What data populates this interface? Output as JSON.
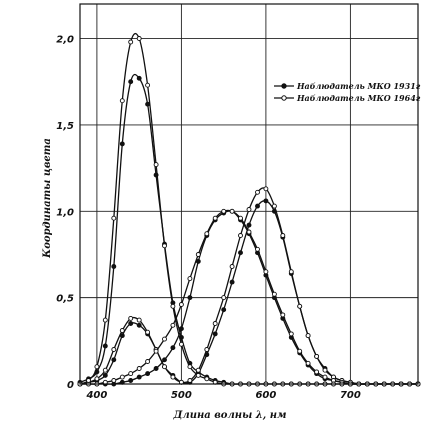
{
  "chart_data": {
    "type": "line",
    "title": "",
    "xlabel": "Длина волны λ, нм",
    "ylabel": "Координаты цвета",
    "xlim": [
      380,
      780
    ],
    "ylim": [
      0,
      2.2
    ],
    "x_ticks": [
      400,
      500,
      600,
      700
    ],
    "y_ticks": [
      0,
      0.5,
      1.0,
      1.5,
      2.0
    ],
    "y_tick_labels": [
      "0",
      "0,5",
      "1,0",
      "1,5",
      "2,0"
    ],
    "grid": true,
    "legend_position": "top-right",
    "x": [
      380,
      390,
      400,
      410,
      420,
      430,
      440,
      450,
      460,
      470,
      480,
      490,
      500,
      510,
      520,
      530,
      540,
      550,
      560,
      570,
      580,
      590,
      600,
      610,
      620,
      630,
      640,
      650,
      660,
      670,
      680,
      690,
      700,
      710,
      720,
      730,
      740,
      750,
      760,
      770,
      780
    ],
    "series": [
      {
        "name": "Наблюдатель МКО 1931г",
        "marker": "filled",
        "curves": [
          {
            "values": [
              0.0,
              0.01,
              0.02,
              0.05,
              0.14,
              0.28,
              0.35,
              0.34,
              0.29,
              0.2,
              0.1,
              0.05,
              0.01,
              0.01,
              0.06,
              0.17,
              0.29,
              0.43,
              0.59,
              0.76,
              0.92,
              1.03,
              1.06,
              1.0,
              0.85,
              0.64,
              0.45,
              0.28,
              0.16,
              0.09,
              0.04,
              0.02,
              0.01,
              0.0,
              0.0,
              0.0,
              0.0,
              0.0,
              0.0,
              0.0,
              0.0
            ]
          },
          {
            "values": [
              0.0,
              0.0,
              0.0,
              0.0,
              0.0,
              0.01,
              0.02,
              0.04,
              0.06,
              0.09,
              0.14,
              0.21,
              0.32,
              0.5,
              0.71,
              0.86,
              0.95,
              0.99,
              1.0,
              0.95,
              0.87,
              0.76,
              0.63,
              0.5,
              0.38,
              0.27,
              0.18,
              0.11,
              0.06,
              0.03,
              0.02,
              0.01,
              0.0,
              0.0,
              0.0,
              0.0,
              0.0,
              0.0,
              0.0,
              0.0,
              0.0
            ]
          },
          {
            "values": [
              0.01,
              0.03,
              0.07,
              0.22,
              0.68,
              1.39,
              1.75,
              1.77,
              1.62,
              1.21,
              0.81,
              0.47,
              0.27,
              0.12,
              0.07,
              0.04,
              0.02,
              0.01,
              0.0,
              0.0,
              0.0,
              0.0,
              0.0,
              0.0,
              0.0,
              0.0,
              0.0,
              0.0,
              0.0,
              0.0,
              0.0,
              0.0,
              0.0,
              0.0,
              0.0,
              0.0,
              0.0,
              0.0,
              0.0,
              0.0,
              0.0
            ]
          }
        ]
      },
      {
        "name": "Наблюдатель МКО 1964г",
        "marker": "open",
        "curves": [
          {
            "values": [
              0.0,
              0.01,
              0.03,
              0.08,
              0.2,
              0.31,
              0.38,
              0.37,
              0.3,
              0.2,
              0.1,
              0.04,
              0.01,
              0.02,
              0.08,
              0.2,
              0.35,
              0.5,
              0.68,
              0.86,
              1.01,
              1.11,
              1.13,
              1.03,
              0.86,
              0.65,
              0.45,
              0.28,
              0.16,
              0.08,
              0.04,
              0.02,
              0.01,
              0.0,
              0.0,
              0.0,
              0.0,
              0.0,
              0.0,
              0.0,
              0.0
            ]
          },
          {
            "values": [
              0.0,
              0.0,
              0.0,
              0.01,
              0.02,
              0.04,
              0.06,
              0.09,
              0.13,
              0.19,
              0.26,
              0.34,
              0.46,
              0.61,
              0.75,
              0.87,
              0.96,
              1.0,
              1.0,
              0.96,
              0.88,
              0.78,
              0.65,
              0.52,
              0.4,
              0.29,
              0.19,
              0.12,
              0.07,
              0.04,
              0.02,
              0.01,
              0.0,
              0.0,
              0.0,
              0.0,
              0.0,
              0.0,
              0.0,
              0.0,
              0.0
            ]
          },
          {
            "values": [
              0.0,
              0.02,
              0.1,
              0.37,
              0.96,
              1.64,
              1.98,
              2.0,
              1.73,
              1.27,
              0.8,
              0.45,
              0.23,
              0.1,
              0.05,
              0.03,
              0.01,
              0.0,
              0.0,
              0.0,
              0.0,
              0.0,
              0.0,
              0.0,
              0.0,
              0.0,
              0.0,
              0.0,
              0.0,
              0.0,
              0.0,
              0.0,
              0.0,
              0.0,
              0.0,
              0.0,
              0.0,
              0.0,
              0.0,
              0.0,
              0.0
            ]
          }
        ]
      }
    ]
  }
}
